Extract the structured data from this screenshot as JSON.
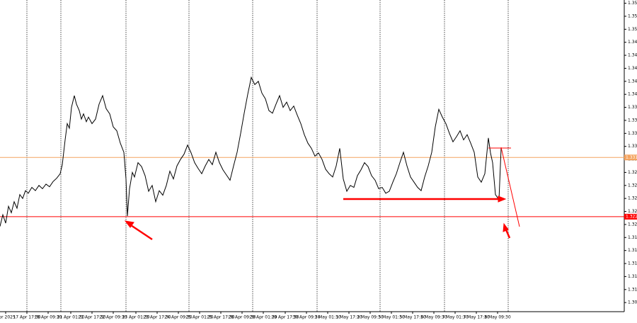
{
  "chart_data": {
    "type": "line",
    "x": [
      0,
      4,
      8,
      12,
      16,
      20,
      24,
      28,
      32,
      36,
      40,
      45,
      50,
      55,
      60,
      65,
      70,
      75,
      80,
      85,
      88,
      92,
      95,
      98,
      101,
      105,
      108,
      112,
      115,
      118,
      122,
      125,
      130,
      135,
      140,
      145,
      150,
      155,
      160,
      165,
      170,
      175,
      178,
      180,
      183,
      187,
      190,
      195,
      200,
      205,
      210,
      215,
      220,
      225,
      230,
      235,
      240,
      245,
      250,
      255,
      260,
      265,
      270,
      275,
      280,
      285,
      290,
      295,
      300,
      305,
      310,
      315,
      320,
      325,
      330,
      335,
      340,
      345,
      350,
      355,
      360,
      365,
      370,
      375,
      380,
      385,
      390,
      395,
      400,
      405,
      410,
      415,
      420,
      425,
      430,
      435,
      440,
      445,
      450,
      455,
      460,
      465,
      470,
      475,
      480,
      485,
      490,
      495,
      500,
      505,
      510,
      515,
      520,
      525,
      530,
      535,
      540,
      545,
      550,
      555,
      560,
      565,
      570,
      575,
      580,
      585,
      590,
      595,
      600,
      605,
      610,
      615,
      620,
      625,
      630,
      635,
      640,
      645,
      650,
      655,
      660,
      665,
      670,
      675,
      680,
      685,
      690,
      693,
      696,
      700,
      705,
      708
    ],
    "series": [
      {
        "color": "#000000",
        "values": [
          1.3207,
          1.3225,
          1.3212,
          1.3238,
          1.3228,
          1.3245,
          1.3235,
          1.3256,
          1.325,
          1.3262,
          1.3258,
          1.3267,
          1.3262,
          1.327,
          1.3265,
          1.3272,
          1.3268,
          1.3276,
          1.3281,
          1.3288,
          1.3302,
          1.334,
          1.3365,
          1.3358,
          1.339,
          1.3408,
          1.3395,
          1.3385,
          1.3372,
          1.338,
          1.3368,
          1.3375,
          1.3365,
          1.3372,
          1.3395,
          1.3408,
          1.3388,
          1.338,
          1.336,
          1.3354,
          1.3335,
          1.3321,
          1.328,
          1.3223,
          1.3265,
          1.329,
          1.3283,
          1.3305,
          1.3299,
          1.3285,
          1.3261,
          1.327,
          1.3245,
          1.3262,
          1.3255,
          1.327,
          1.3292,
          1.328,
          1.33,
          1.331,
          1.3318,
          1.3332,
          1.332,
          1.3305,
          1.3296,
          1.3288,
          1.33,
          1.331,
          1.3302,
          1.3321,
          1.3305,
          1.3294,
          1.3286,
          1.3278,
          1.33,
          1.3321,
          1.335,
          1.3381,
          1.341,
          1.3436,
          1.3425,
          1.343,
          1.3412,
          1.3403,
          1.3385,
          1.3381,
          1.3395,
          1.3408,
          1.339,
          1.3398,
          1.3385,
          1.3392,
          1.3378,
          1.3365,
          1.3348,
          1.3335,
          1.3327,
          1.3315,
          1.332,
          1.331,
          1.3295,
          1.3288,
          1.3283,
          1.33,
          1.3327,
          1.328,
          1.3261,
          1.327,
          1.3267,
          1.3285,
          1.3294,
          1.3305,
          1.3299,
          1.3285,
          1.3278,
          1.3265,
          1.3267,
          1.3258,
          1.3261,
          1.3275,
          1.3288,
          1.3305,
          1.3321,
          1.33,
          1.3283,
          1.3275,
          1.3267,
          1.3262,
          1.3283,
          1.33,
          1.3321,
          1.336,
          1.3387,
          1.3375,
          1.3365,
          1.335,
          1.3337,
          1.3345,
          1.3354,
          1.334,
          1.3348,
          1.3335,
          1.3321,
          1.3283,
          1.3275,
          1.3288,
          1.3343,
          1.332,
          1.3305,
          1.3256,
          1.3248,
          1.3327
        ]
      }
    ],
    "xlim": [
      0,
      880
    ],
    "ylim": [
      1.3076,
      1.3555
    ],
    "xticks": [
      {
        "value": 8,
        "label": "Apr 2025"
      },
      {
        "value": 38,
        "label": "17 Apr 17:30"
      },
      {
        "value": 68,
        "label": "18 Apr 09:30"
      },
      {
        "value": 100,
        "label": "21 Apr 01:30"
      },
      {
        "value": 130,
        "label": "21 Apr 17:30"
      },
      {
        "value": 160,
        "label": "22 Apr 09:30"
      },
      {
        "value": 192,
        "label": "23 Apr 01:30"
      },
      {
        "value": 222,
        "label": "23 Apr 17:30"
      },
      {
        "value": 252,
        "label": "24 Apr 09:30"
      },
      {
        "value": 282,
        "label": "25 Apr 01:30"
      },
      {
        "value": 312,
        "label": "25 Apr 17:30"
      },
      {
        "value": 342,
        "label": "28 Apr 09:30"
      },
      {
        "value": 372,
        "label": "29 Apr 01:30"
      },
      {
        "value": 403,
        "label": "29 Apr 17:30"
      },
      {
        "value": 433,
        "label": "30 Apr 09:30"
      },
      {
        "value": 463,
        "label": "1 May 01:30"
      },
      {
        "value": 493,
        "label": "1 May 17:30"
      },
      {
        "value": 523,
        "label": "2 May 09:30"
      },
      {
        "value": 553,
        "label": "5 May 01:30"
      },
      {
        "value": 583,
        "label": "5 May 17:30"
      },
      {
        "value": 613,
        "label": "6 May 09:30"
      },
      {
        "value": 643,
        "label": "7 May 01:30"
      },
      {
        "value": 673,
        "label": "7 May 17:30"
      },
      {
        "value": 703,
        "label": "8 May 09:30"
      }
    ],
    "yticks": [
      1.309,
      1.311,
      1.313,
      1.315,
      1.317,
      1.319,
      1.321,
      1.323,
      1.325,
      1.327,
      1.329,
      1.331,
      1.333,
      1.335,
      1.337,
      1.339,
      1.341,
      1.343,
      1.345,
      1.347,
      1.349,
      1.351,
      1.353,
      1.355
    ],
    "hlines": [
      {
        "value": 1.3313,
        "color": "#f4a460",
        "label": "1.331"
      },
      {
        "value": 1.3222,
        "color": "#ff0000",
        "label": "1.322"
      }
    ]
  }
}
